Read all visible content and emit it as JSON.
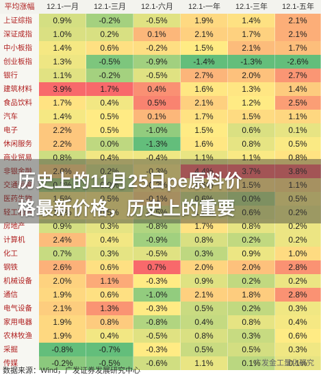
{
  "table": {
    "header": [
      "平均涨幅",
      "12.1-一月",
      "12.1-三月",
      "12.1-六月",
      "12.1-一年",
      "12.1-三年",
      "12.1-五年"
    ],
    "rows": [
      {
        "label": "上证综指",
        "values": [
          "0.9%",
          "-0.2%",
          "-0.5%",
          "1.9%",
          "1.4%",
          "2.1%"
        ]
      },
      {
        "label": "深证成指",
        "values": [
          "1.0%",
          "0.2%",
          "0.1%",
          "2.1%",
          "1.7%",
          "2.1%"
        ]
      },
      {
        "label": "中小板指",
        "values": [
          "1.4%",
          "0.6%",
          "-0.2%",
          "1.5%",
          "2.1%",
          "1.7%"
        ]
      },
      {
        "label": "创业板指",
        "values": [
          "1.3%",
          "-0.5%",
          "-0.9%",
          "-1.4%",
          "-1.3%",
          "-2.6%"
        ]
      },
      {
        "label": "银行",
        "values": [
          "1.1%",
          "-0.2%",
          "-0.5%",
          "2.7%",
          "2.0%",
          "2.7%"
        ]
      },
      {
        "label": "建筑材料",
        "values": [
          "3.9%",
          "1.7%",
          "0.4%",
          "1.6%",
          "1.3%",
          "1.4%"
        ]
      },
      {
        "label": "食品饮料",
        "values": [
          "1.7%",
          "0.4%",
          "0.5%",
          "2.1%",
          "1.2%",
          "2.5%"
        ]
      },
      {
        "label": "汽车",
        "values": [
          "1.4%",
          "0.5%",
          "0.1%",
          "1.7%",
          "1.5%",
          "1.1%"
        ]
      },
      {
        "label": "电子",
        "values": [
          "2.2%",
          "0.5%",
          "-1.0%",
          "1.5%",
          "0.6%",
          "0.1%"
        ]
      },
      {
        "label": "休闲服务",
        "values": [
          "2.2%",
          "0.0%",
          "-1.3%",
          "1.6%",
          "0.8%",
          "0.5%"
        ]
      },
      {
        "label": "商业贸易",
        "values": [
          "0.8%",
          "0.4%",
          "-0.4%",
          "1.1%",
          "1.1%",
          "0.8%"
        ]
      },
      {
        "label": "非银金融",
        "values": [
          "2.0%",
          "0.2%",
          "-0.3%",
          "4.4%",
          "3.7%",
          "3.8%"
        ]
      },
      {
        "label": "交通运输",
        "values": [
          "0.3%",
          "0.0%",
          "-0.2%",
          "1.6%",
          "1.5%",
          "1.1%"
        ]
      },
      {
        "label": "医药生物",
        "values": [
          "1.5%",
          "0.5%",
          "-0.1%",
          "0.6%",
          "0.0%",
          "0.5%"
        ]
      },
      {
        "label": "轻工制造",
        "values": [
          "1.5%",
          "0.5%",
          "-0.5%",
          "1.2%",
          "0.6%",
          "0.2%"
        ]
      },
      {
        "label": "房地产",
        "values": [
          "0.9%",
          "0.3%",
          "-0.8%",
          "1.7%",
          "0.8%",
          "0.2%"
        ]
      },
      {
        "label": "计算机",
        "values": [
          "2.4%",
          "0.4%",
          "-0.9%",
          "0.8%",
          "0.2%",
          "0.2%"
        ]
      },
      {
        "label": "化工",
        "values": [
          "0.7%",
          "0.3%",
          "-0.5%",
          "0.3%",
          "0.9%",
          "1.0%"
        ]
      },
      {
        "label": "钢铁",
        "values": [
          "2.6%",
          "0.6%",
          "0.7%",
          "2.0%",
          "2.0%",
          "2.8%"
        ]
      },
      {
        "label": "机械设备",
        "values": [
          "2.0%",
          "1.1%",
          "-0.3%",
          "0.9%",
          "0.2%",
          "0.2%"
        ]
      },
      {
        "label": "通信",
        "values": [
          "1.9%",
          "0.6%",
          "-1.0%",
          "2.1%",
          "1.8%",
          "2.8%"
        ]
      },
      {
        "label": "电气设备",
        "values": [
          "2.1%",
          "1.3%",
          "-0.3%",
          "0.5%",
          "0.2%",
          "0.3%"
        ]
      },
      {
        "label": "家用电器",
        "values": [
          "1.9%",
          "0.8%",
          "-0.8%",
          "0.4%",
          "0.8%",
          "0.4%"
        ]
      },
      {
        "label": "农林牧渔",
        "values": [
          "1.9%",
          "0.4%",
          "-0.5%",
          "0.8%",
          "0.3%",
          "0.6%"
        ]
      },
      {
        "label": "采掘",
        "values": [
          "-0.8%",
          "-0.7%",
          "-0.3%",
          "0.5%",
          "0.5%",
          "0.3%"
        ]
      },
      {
        "label": "传媒",
        "values": [
          "-0.2%",
          "-0.5%",
          "-0.6%",
          "1.1%",
          "0.1%",
          "0.1%"
        ]
      }
    ]
  },
  "overlay": {
    "line1": "历史上的11月25日pe原料价",
    "line2": "格最新价格，历史上的重要"
  },
  "source": "数据来源：Wind，广发证券发展研究中心",
  "watermark": "广发金工量化研究",
  "colors": {
    "strong_red": "#f8696b",
    "strong_green": "#63be7b",
    "mid_yellow": "#ffeb84",
    "header_bg": "#f3f3ee"
  }
}
